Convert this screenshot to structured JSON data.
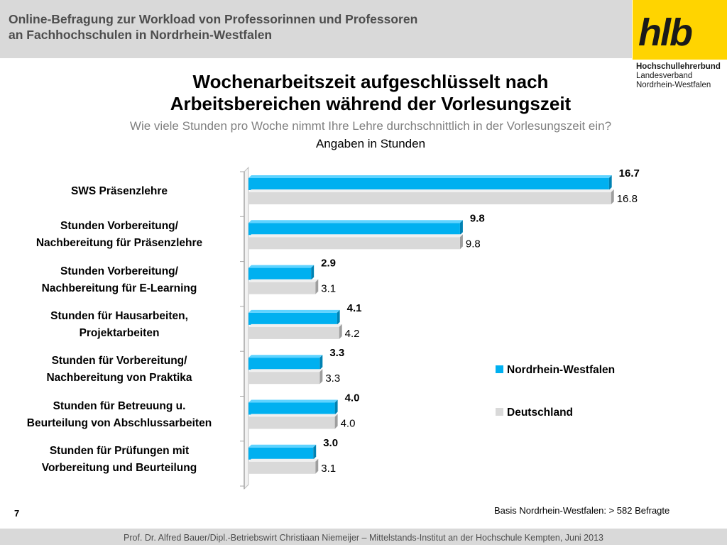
{
  "header": {
    "title_line1": "Online-Befragung  zur  Workload von Professorinnen und Professoren",
    "title_line2": "an Fachhochschulen in Nordrhein-Westfalen"
  },
  "logo": {
    "text": "hlb",
    "sub1": "Hochschullehrerbund",
    "sub2": "Landesverband",
    "sub3": "Nordrhein-Westfalen"
  },
  "colors": {
    "header_band": "#d9d9d9",
    "logo_yellow": "#ffd400",
    "series_nrw": "#00b0f0",
    "series_de": "#d9d9d9"
  },
  "chart_data": {
    "type": "bar",
    "orientation": "horizontal",
    "title_line1": "Wochenarbeitszeit aufgeschlüsselt nach",
    "title_line2": "Arbeitsbereichen während der Vorlesungszeit",
    "subtitle": "Wie viele Stunden pro Woche nimmt Ihre Lehre durchschnittlich in der Vorlesungszeit ein?",
    "unit_label": "Angaben in Stunden",
    "categories": [
      [
        "SWS Präsenzlehre"
      ],
      [
        "Stunden Vorbereitung/",
        "Nachbereitung für Präsenzlehre"
      ],
      [
        "Stunden Vorbereitung/",
        "Nachbereitung für E-Learning"
      ],
      [
        "Stunden für Hausarbeiten,",
        "Projektarbeiten"
      ],
      [
        "Stunden für Vorbereitung/",
        "Nachbereitung von Praktika"
      ],
      [
        "Stunden für Betreuung u.",
        "Beurteilung von Abschlussarbeiten"
      ],
      [
        "Stunden für Prüfungen mit",
        "Vorbereitung und Beurteilung"
      ]
    ],
    "series": [
      {
        "name": "Nordrhein-Westfalen",
        "values": [
          16.7,
          9.8,
          2.9,
          4.1,
          3.3,
          4.0,
          3.0
        ],
        "value_labels": [
          "16.7",
          "9.8",
          "2.9",
          "4.1",
          "3.3",
          "4.0",
          "3.0"
        ]
      },
      {
        "name": "Deutschland",
        "values": [
          16.8,
          9.8,
          3.1,
          4.2,
          3.3,
          4.0,
          3.1
        ],
        "value_labels": [
          "16.8",
          "9.8",
          "3.1",
          "4.2",
          "3.3",
          "4.0",
          "3.1"
        ]
      }
    ],
    "xlim": [
      0,
      17
    ],
    "legend_position": "right",
    "grid": false
  },
  "base_note": "Basis Nordrhein-Westfalen: > 582 Befragte",
  "page_number": "7",
  "footer": "Prof. Dr. Alfred Bauer/Dipl.-Betriebswirt Christiaan Niemeijer – Mittelstands-Institut an der Hochschule Kempten, Juni 2013"
}
